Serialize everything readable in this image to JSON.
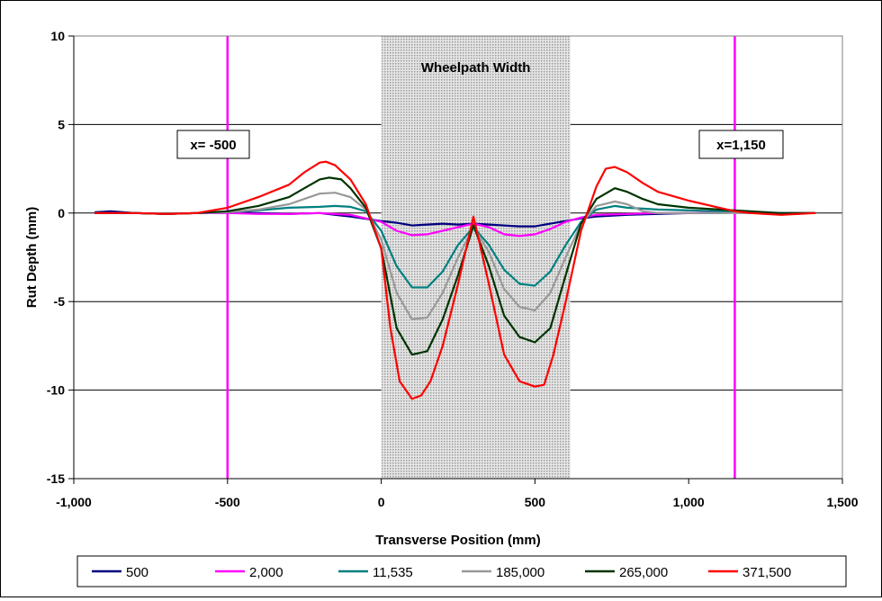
{
  "chart_data": {
    "type": "line",
    "xlabel": "Transverse Position (mm)",
    "ylabel": "Rut Depth (mm)",
    "xlim": [
      -1000,
      1500
    ],
    "ylim": [
      -15,
      10
    ],
    "x_ticks": [
      -1000,
      -500,
      0,
      500,
      1000,
      1500
    ],
    "x_tick_labels": [
      "-1,000",
      "-500",
      "0",
      "500",
      "1,000",
      "1,500"
    ],
    "y_ticks": [
      -15,
      -10,
      -5,
      0,
      5,
      10
    ],
    "y_tick_labels": [
      "-15",
      "-10",
      "-5",
      "0",
      "5",
      "10"
    ],
    "grid": "horizontal",
    "legend_position": "bottom",
    "shaded_region": {
      "label": "Wheelpath Width",
      "x0": 0,
      "x1": 615,
      "color": "#c8c8c8"
    },
    "vertical_lines": [
      {
        "x": -500,
        "label": "x= -500",
        "color": "#ff00ff"
      },
      {
        "x": 1150,
        "label": "x=1,150",
        "color": "#ff00ff"
      }
    ],
    "series": [
      {
        "name": "500",
        "color": "#000080",
        "x": [
          -930,
          -880,
          -800,
          -700,
          -600,
          -500,
          -400,
          -300,
          -200,
          -100,
          0,
          50,
          100,
          150,
          200,
          250,
          300,
          350,
          400,
          450,
          500,
          550,
          600,
          650,
          700,
          800,
          900,
          1000,
          1100,
          1200,
          1300,
          1410
        ],
        "y": [
          0.05,
          0.1,
          0.0,
          -0.05,
          0.0,
          0.05,
          0.0,
          -0.05,
          0.0,
          -0.2,
          -0.45,
          -0.55,
          -0.7,
          -0.65,
          -0.6,
          -0.65,
          -0.6,
          -0.65,
          -0.7,
          -0.75,
          -0.75,
          -0.6,
          -0.45,
          -0.3,
          -0.2,
          -0.1,
          -0.05,
          0.0,
          0.0,
          0.05,
          0.0,
          0.0
        ]
      },
      {
        "name": "2,000",
        "color": "#ff00ff",
        "x": [
          -930,
          -800,
          -700,
          -600,
          -500,
          -400,
          -300,
          -200,
          -100,
          0,
          50,
          100,
          150,
          200,
          250,
          300,
          350,
          400,
          450,
          500,
          550,
          600,
          650,
          700,
          800,
          900,
          1000,
          1100,
          1200,
          1300,
          1410
        ],
        "y": [
          0.0,
          0.0,
          -0.05,
          0.0,
          0.0,
          -0.05,
          -0.05,
          0.0,
          -0.1,
          -0.5,
          -1.0,
          -1.25,
          -1.2,
          -1.0,
          -0.8,
          -0.6,
          -0.8,
          -1.2,
          -1.3,
          -1.2,
          -0.9,
          -0.5,
          -0.25,
          -0.1,
          -0.05,
          0.0,
          0.0,
          0.05,
          0.0,
          0.0,
          0.0
        ]
      },
      {
        "name": "11,535",
        "color": "#008080",
        "x": [
          -930,
          -800,
          -700,
          -600,
          -500,
          -400,
          -300,
          -200,
          -150,
          -100,
          -50,
          0,
          50,
          100,
          150,
          200,
          250,
          300,
          350,
          400,
          450,
          500,
          550,
          600,
          650,
          700,
          760,
          800,
          900,
          1000,
          1100,
          1200,
          1300,
          1410
        ],
        "y": [
          0.0,
          0.0,
          -0.05,
          0.0,
          0.05,
          0.15,
          0.3,
          0.35,
          0.4,
          0.35,
          0.1,
          -1.0,
          -3.0,
          -4.2,
          -4.2,
          -3.3,
          -1.8,
          -0.8,
          -1.8,
          -3.2,
          -4.0,
          -4.1,
          -3.3,
          -1.8,
          -0.5,
          0.2,
          0.4,
          0.3,
          0.2,
          0.15,
          0.1,
          0.05,
          0.0,
          0.0
        ]
      },
      {
        "name": "185,000",
        "color": "#999999",
        "x": [
          -930,
          -800,
          -700,
          -600,
          -500,
          -400,
          -300,
          -250,
          -200,
          -150,
          -100,
          -50,
          0,
          50,
          100,
          150,
          200,
          250,
          300,
          350,
          400,
          450,
          500,
          550,
          600,
          650,
          700,
          760,
          800,
          850,
          900,
          1000,
          1100,
          1200,
          1300,
          1410
        ],
        "y": [
          0.0,
          0.0,
          -0.05,
          0.0,
          0.05,
          0.2,
          0.5,
          0.8,
          1.1,
          1.15,
          0.9,
          0.2,
          -1.5,
          -4.5,
          -6.0,
          -5.9,
          -4.5,
          -2.5,
          -0.8,
          -2.2,
          -4.3,
          -5.3,
          -5.5,
          -4.5,
          -2.5,
          -0.6,
          0.4,
          0.65,
          0.5,
          0.1,
          0.0,
          0.0,
          0.0,
          0.0,
          0.0,
          0.0
        ]
      },
      {
        "name": "265,000",
        "color": "#003300",
        "x": [
          -930,
          -800,
          -700,
          -600,
          -500,
          -400,
          -300,
          -250,
          -200,
          -170,
          -130,
          -100,
          -50,
          0,
          50,
          100,
          150,
          200,
          250,
          300,
          350,
          400,
          450,
          500,
          550,
          600,
          650,
          700,
          760,
          800,
          850,
          900,
          1000,
          1100,
          1200,
          1300,
          1410
        ],
        "y": [
          0.0,
          0.0,
          -0.05,
          0.0,
          0.1,
          0.4,
          0.9,
          1.4,
          1.9,
          2.0,
          1.9,
          1.4,
          0.3,
          -2.0,
          -6.5,
          -8.0,
          -7.8,
          -6.0,
          -3.5,
          -0.7,
          -3.0,
          -5.8,
          -7.0,
          -7.3,
          -6.5,
          -3.5,
          -0.6,
          0.8,
          1.4,
          1.2,
          0.8,
          0.5,
          0.3,
          0.2,
          0.1,
          0.0,
          0.0
        ]
      },
      {
        "name": "371,500",
        "color": "#ff0000",
        "x": [
          -930,
          -800,
          -700,
          -600,
          -500,
          -400,
          -300,
          -250,
          -200,
          -180,
          -150,
          -100,
          -50,
          0,
          30,
          60,
          100,
          130,
          160,
          200,
          250,
          300,
          350,
          400,
          450,
          500,
          530,
          560,
          600,
          650,
          700,
          730,
          760,
          800,
          850,
          900,
          1000,
          1100,
          1150,
          1200,
          1300,
          1410
        ],
        "y": [
          0.0,
          0.0,
          -0.05,
          0.0,
          0.3,
          0.9,
          1.6,
          2.3,
          2.85,
          2.9,
          2.7,
          1.9,
          0.5,
          -2.0,
          -6.5,
          -9.5,
          -10.5,
          -10.3,
          -9.5,
          -7.5,
          -4.0,
          -0.2,
          -4.0,
          -8.0,
          -9.5,
          -9.8,
          -9.7,
          -8.0,
          -5.0,
          -1.0,
          1.5,
          2.5,
          2.6,
          2.3,
          1.7,
          1.2,
          0.7,
          0.3,
          0.1,
          0.0,
          -0.1,
          0.0
        ]
      }
    ]
  }
}
